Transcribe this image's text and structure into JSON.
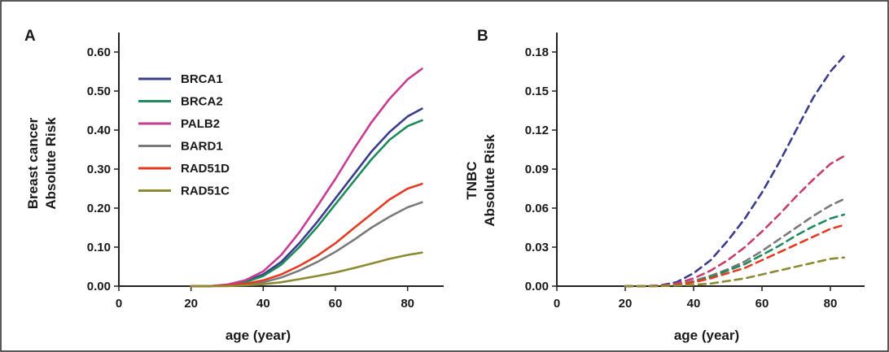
{
  "chart_data": [
    {
      "type": "line",
      "panel_label": "A",
      "xlabel": "age (year)",
      "ylabel": [
        "Breast cancer",
        "Absolute Risk"
      ],
      "xlim": [
        0,
        90
      ],
      "ylim": [
        0,
        0.65
      ],
      "xticks": [
        "0",
        "20",
        "40",
        "60",
        "80"
      ],
      "yticks": [
        "0.00",
        "0.10",
        "0.20",
        "0.30",
        "0.40",
        "0.50",
        "0.60"
      ],
      "legend": "top-left",
      "grid": false,
      "x": [
        20,
        25,
        30,
        35,
        40,
        45,
        50,
        55,
        60,
        65,
        70,
        75,
        80,
        84
      ],
      "series": [
        {
          "name": "BRCA1",
          "color": "#3b3c8c",
          "style": "solid",
          "values": [
            0,
            0,
            0.003,
            0.012,
            0.03,
            0.062,
            0.11,
            0.165,
            0.225,
            0.285,
            0.345,
            0.395,
            0.435,
            0.455
          ]
        },
        {
          "name": "BRCA2",
          "color": "#1f8a5b",
          "style": "solid",
          "values": [
            0,
            0,
            0.002,
            0.01,
            0.026,
            0.055,
            0.1,
            0.152,
            0.21,
            0.268,
            0.325,
            0.375,
            0.41,
            0.425
          ]
        },
        {
          "name": "PALB2",
          "color": "#c73d92",
          "style": "solid",
          "values": [
            0,
            0,
            0.004,
            0.015,
            0.038,
            0.08,
            0.138,
            0.205,
            0.275,
            0.35,
            0.42,
            0.48,
            0.53,
            0.557
          ]
        },
        {
          "name": "BARD1",
          "color": "#7a7a7a",
          "style": "solid",
          "values": [
            0,
            0,
            0.001,
            0.004,
            0.01,
            0.022,
            0.04,
            0.062,
            0.088,
            0.118,
            0.15,
            0.178,
            0.202,
            0.215
          ]
        },
        {
          "name": "RAD51D",
          "color": "#e63b22",
          "style": "solid",
          "values": [
            0,
            0,
            0.002,
            0.006,
            0.015,
            0.03,
            0.052,
            0.078,
            0.11,
            0.148,
            0.185,
            0.222,
            0.25,
            0.262
          ]
        },
        {
          "name": "RAD51C",
          "color": "#8c8a32",
          "style": "solid",
          "values": [
            0,
            0,
            0,
            0.002,
            0.005,
            0.01,
            0.018,
            0.026,
            0.035,
            0.046,
            0.058,
            0.07,
            0.08,
            0.086
          ]
        }
      ]
    },
    {
      "type": "line",
      "panel_label": "B",
      "xlabel": "age (year)",
      "ylabel": [
        "TNBC",
        "Absolute Risk"
      ],
      "xlim": [
        0,
        90
      ],
      "ylim": [
        0,
        0.195
      ],
      "xticks": [
        "0",
        "20",
        "40",
        "60",
        "80"
      ],
      "yticks": [
        "0.00",
        "0.03",
        "0.06",
        "0.09",
        "0.12",
        "0.15",
        "0.18"
      ],
      "grid": false,
      "x": [
        20,
        25,
        30,
        35,
        40,
        45,
        50,
        55,
        60,
        65,
        70,
        75,
        80,
        84
      ],
      "series": [
        {
          "color": "#3b3c8c",
          "style": "dashed",
          "values": [
            0,
            0,
            0.0005,
            0.003,
            0.01,
            0.02,
            0.035,
            0.052,
            0.072,
            0.095,
            0.12,
            0.145,
            0.165,
            0.177
          ]
        },
        {
          "color": "#c73d6e",
          "style": "dashed",
          "values": [
            0,
            0,
            0.0003,
            0.002,
            0.006,
            0.012,
            0.02,
            0.03,
            0.042,
            0.055,
            0.069,
            0.082,
            0.094,
            0.1
          ]
        },
        {
          "color": "#7a7a7a",
          "style": "dashed",
          "values": [
            0,
            0,
            0.0002,
            0.001,
            0.004,
            0.008,
            0.013,
            0.019,
            0.027,
            0.036,
            0.045,
            0.054,
            0.062,
            0.067
          ]
        },
        {
          "color": "#1f8a5b",
          "style": "dashed",
          "values": [
            0,
            0,
            0.0002,
            0.001,
            0.003,
            0.007,
            0.012,
            0.017,
            0.024,
            0.031,
            0.039,
            0.046,
            0.052,
            0.055
          ]
        },
        {
          "color": "#e63b22",
          "style": "dashed",
          "values": [
            0,
            0,
            0.0001,
            0.001,
            0.003,
            0.006,
            0.01,
            0.014,
            0.02,
            0.026,
            0.032,
            0.038,
            0.044,
            0.047
          ]
        },
        {
          "color": "#8c8a32",
          "style": "dashed",
          "values": [
            0,
            0,
            0,
            0.0005,
            0.001,
            0.002,
            0.004,
            0.006,
            0.009,
            0.012,
            0.015,
            0.018,
            0.021,
            0.022
          ]
        }
      ]
    }
  ]
}
